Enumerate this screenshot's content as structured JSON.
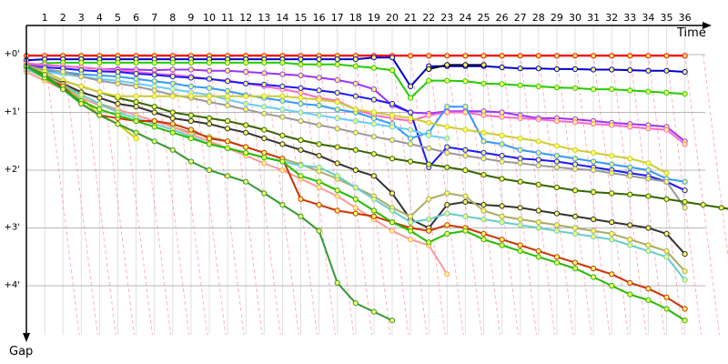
{
  "chart_data": {
    "type": "line",
    "xlabel": "Time",
    "ylabel": "Gap",
    "x_ticks": [
      "1",
      "2",
      "3",
      "4",
      "5",
      "6",
      "7",
      "8",
      "9",
      "10",
      "11",
      "12",
      "13",
      "14",
      "15",
      "16",
      "17",
      "18",
      "19",
      "20",
      "21",
      "22",
      "23",
      "24",
      "25",
      "26",
      "27",
      "28",
      "29",
      "30",
      "31",
      "32",
      "33",
      "34",
      "35",
      "36"
    ],
    "y_ticks": [
      "+0'",
      "+1'",
      "+2'",
      "+3'",
      "+4'"
    ],
    "xlim": [
      0,
      37
    ],
    "ylim": [
      0,
      4.9
    ],
    "grid": true,
    "legend": "none",
    "series": [
      {
        "color": "#ff0000",
        "values": [
          0.02,
          0.02,
          0.02,
          0.02,
          0.02,
          0.02,
          0.02,
          0.02,
          0.02,
          0.02,
          0.02,
          0.02,
          0.02,
          0.02,
          0.02,
          0.02,
          0.02,
          0.02,
          0.02,
          0.02,
          0.02,
          0.02,
          0.02,
          0.02,
          0.02,
          0.02,
          0.02,
          0.02,
          0.02,
          0.02,
          0.02,
          0.02,
          0.02,
          0.02,
          0.02,
          0.02,
          0.02
        ]
      },
      {
        "color": "#0000cc",
        "values": [
          0.1,
          0.08,
          0.08,
          0.08,
          0.08,
          0.08,
          0.08,
          0.08,
          0.08,
          0.08,
          0.08,
          0.08,
          0.08,
          0.08,
          0.08,
          0.08,
          0.08,
          0.08,
          0.08,
          0.05,
          0.05,
          0.55,
          0.2,
          0.2,
          0.2,
          0.2,
          0.22,
          0.24,
          0.24,
          0.25,
          0.25,
          0.26,
          0.26,
          0.27,
          0.28,
          0.28,
          0.3
        ]
      },
      {
        "color": "#000033",
        "values": [
          null,
          null,
          null,
          null,
          null,
          null,
          null,
          null,
          null,
          null,
          null,
          null,
          null,
          null,
          null,
          null,
          null,
          null,
          null,
          null,
          null,
          null,
          0.25,
          0.18,
          0.18,
          0.18
        ]
      },
      {
        "color": "#22cc00",
        "values": [
          0.2,
          0.15,
          0.14,
          0.14,
          0.14,
          0.14,
          0.14,
          0.14,
          0.14,
          0.14,
          0.14,
          0.14,
          0.14,
          0.14,
          0.14,
          0.17,
          0.17,
          0.17,
          0.2,
          0.23,
          0.27,
          0.75,
          0.45,
          0.45,
          0.46,
          0.5,
          0.51,
          0.53,
          0.55,
          0.57,
          0.58,
          0.6,
          0.6,
          0.62,
          0.64,
          0.66,
          0.68
        ]
      },
      {
        "color": "#9933ff",
        "values": [
          0.2,
          0.18,
          0.2,
          0.22,
          0.25,
          0.25,
          0.26,
          0.27,
          0.26,
          0.26,
          0.28,
          0.28,
          0.3,
          0.32,
          0.34,
          0.36,
          0.4,
          0.44,
          0.5,
          0.6,
          0.88,
          1.0,
          1.02,
          0.98,
          0.98,
          0.98,
          1.0,
          1.05,
          1.1,
          1.1,
          1.12,
          1.15,
          1.18,
          1.2,
          1.22,
          1.25,
          1.5
        ]
      },
      {
        "color": "#ff66cc",
        "values": [
          0.15,
          0.18,
          0.2,
          0.22,
          0.25,
          0.27,
          0.3,
          0.33,
          0.35,
          0.38,
          0.42,
          0.45,
          0.5,
          0.55,
          0.6,
          0.66,
          0.75,
          0.8,
          0.95,
          1.05,
          1.1,
          1.15,
          1.05,
          1.0,
          1.0,
          1.05,
          1.08,
          1.1,
          1.12,
          1.15,
          1.17,
          1.2,
          1.22,
          1.25,
          1.28,
          1.3,
          1.55
        ]
      },
      {
        "color": "#1a1aff",
        "values": [
          0.22,
          0.22,
          0.24,
          0.27,
          0.29,
          0.3,
          0.33,
          0.35,
          0.38,
          0.4,
          0.42,
          0.46,
          0.5,
          0.52,
          0.55,
          0.58,
          0.62,
          0.66,
          0.72,
          0.78,
          0.85,
          1.0,
          1.95,
          1.6,
          1.65,
          1.7,
          1.75,
          1.8,
          1.82,
          1.85,
          1.9,
          1.95,
          2.0,
          2.05,
          2.1,
          2.2,
          2.35
        ]
      },
      {
        "color": "#3399ff",
        "values": [
          0.25,
          0.28,
          0.3,
          0.34,
          0.36,
          0.38,
          0.42,
          0.46,
          0.5,
          0.55,
          0.58,
          0.63,
          0.7,
          0.75,
          0.8,
          0.85,
          0.88,
          0.95,
          1.0,
          1.1,
          1.2,
          1.45,
          1.35,
          0.9,
          0.9,
          1.5,
          1.55,
          1.65,
          1.7,
          1.75,
          1.8,
          1.85,
          1.9,
          1.95,
          2.0,
          2.15,
          2.2
        ]
      },
      {
        "color": "#66ccff",
        "values": [
          0.28,
          0.3,
          0.34,
          0.38,
          0.42,
          0.45,
          0.5,
          0.55,
          0.6,
          0.65,
          0.7,
          0.78,
          0.85,
          0.9,
          0.95,
          1.0,
          1.05,
          1.1,
          1.15,
          1.2,
          1.25,
          1.3,
          1.4,
          1.45
        ]
      },
      {
        "color": "#999999",
        "values": [
          0.2,
          0.25,
          0.3,
          0.38,
          0.45,
          0.5,
          0.55,
          0.62,
          0.7,
          0.75,
          0.82,
          0.88,
          0.95,
          1.02,
          1.08,
          1.15,
          1.22,
          1.28,
          1.35,
          1.42,
          1.48,
          1.55,
          1.62,
          1.7,
          1.75,
          1.8,
          1.85,
          1.88,
          1.92,
          1.95,
          1.98,
          2.0,
          2.05,
          2.1,
          2.15,
          2.2,
          2.65
        ]
      },
      {
        "color": "#336600",
        "values": [
          0.2,
          0.3,
          0.45,
          0.55,
          0.65,
          0.75,
          0.82,
          0.9,
          1.0,
          1.05,
          1.1,
          1.15,
          1.22,
          1.3,
          1.4,
          1.48,
          1.55,
          1.6,
          1.65,
          1.72,
          1.8,
          1.85,
          1.9,
          1.95,
          2.0,
          2.08,
          2.15,
          2.2,
          2.25,
          2.3,
          2.35,
          2.38,
          2.4,
          2.42,
          2.45,
          2.5,
          2.55,
          2.6,
          2.65,
          2.7
        ]
      },
      {
        "color": "#cccc00",
        "values": [
          0.3,
          0.45,
          0.55,
          0.75,
          1.05,
          1.2,
          1.45
        ]
      },
      {
        "color": "#cccc33",
        "values": [
          0.2,
          0.3,
          0.45,
          0.55,
          0.65,
          0.72,
          0.72,
          0.72,
          0.72,
          0.72,
          0.72,
          0.72,
          0.72,
          0.72,
          0.72,
          0.75,
          0.78,
          0.82,
          0.95,
          1.0,
          1.05,
          1.1,
          1.18,
          1.25,
          1.3,
          1.35,
          1.4,
          1.45,
          1.5,
          1.58,
          1.65,
          1.7,
          1.75,
          1.8,
          1.88,
          2.05
        ]
      },
      {
        "color": "#333333",
        "values": [
          0.2,
          0.35,
          0.5,
          0.65,
          0.75,
          0.85,
          0.9,
          1.0,
          1.1,
          1.15,
          1.2,
          1.28,
          1.35,
          1.45,
          1.55,
          1.65,
          1.75,
          1.88,
          2.0,
          2.1,
          2.4,
          2.85,
          3.0,
          2.6,
          2.55,
          2.6,
          2.62,
          2.65,
          2.7,
          2.75,
          2.8,
          2.85,
          2.9,
          2.95,
          3.0,
          3.1,
          3.45
        ]
      },
      {
        "color": "#aaaa66",
        "values": [
          0.2,
          0.35,
          0.52,
          0.7,
          0.85,
          0.95,
          1.05,
          1.15,
          1.25,
          1.35,
          1.42,
          1.5,
          1.6,
          1.7,
          1.8,
          1.9,
          2.02,
          2.15,
          2.3,
          2.45,
          2.65,
          2.8,
          2.5,
          2.4,
          2.45,
          2.7,
          2.8,
          2.85,
          2.9,
          2.95,
          3.0,
          3.05,
          3.1,
          3.2,
          3.3,
          3.4,
          3.75
        ]
      },
      {
        "color": "#ff9999",
        "values": [
          0.3,
          0.45,
          0.6,
          0.75,
          0.88,
          0.95,
          1.05,
          1.15,
          1.25,
          1.38,
          1.5,
          1.62,
          1.75,
          1.88,
          2.0,
          2.15,
          2.3,
          2.45,
          2.65,
          2.85,
          3.05,
          3.2,
          3.3,
          3.8
        ]
      },
      {
        "color": "#66cccc",
        "values": [
          0.25,
          0.4,
          0.55,
          0.7,
          0.85,
          1.0,
          1.1,
          1.2,
          1.3,
          1.42,
          1.55,
          1.62,
          1.7,
          1.78,
          1.85,
          1.92,
          1.95,
          2.1,
          2.3,
          2.5,
          2.7,
          2.9,
          2.85,
          2.75,
          2.8,
          2.85,
          2.9,
          2.95,
          3.0,
          3.05,
          3.1,
          3.15,
          3.2,
          3.3,
          3.4,
          3.5,
          3.9
        ]
      },
      {
        "color": "#cc3300",
        "values": [
          0.2,
          0.4,
          0.55,
          0.85,
          1.05,
          1.1,
          1.15,
          1.15,
          1.2,
          1.3,
          1.45,
          1.5,
          1.6,
          1.7,
          1.8,
          2.5,
          2.6,
          2.7,
          2.75,
          2.8,
          2.9,
          3.0,
          3.05,
          2.95,
          3.0,
          3.1,
          3.2,
          3.3,
          3.4,
          3.5,
          3.6,
          3.7,
          3.8,
          3.95,
          4.05,
          4.2,
          4.4
        ]
      },
      {
        "color": "#22bb00",
        "values": [
          0.2,
          0.4,
          0.6,
          0.8,
          0.95,
          1.05,
          1.15,
          1.25,
          1.35,
          1.45,
          1.55,
          1.62,
          1.7,
          1.78,
          1.85,
          2.1,
          2.2,
          2.35,
          2.5,
          2.7,
          2.9,
          3.05,
          3.25,
          3.1,
          3.05,
          3.2,
          3.3,
          3.4,
          3.5,
          3.6,
          3.7,
          3.85,
          4.0,
          4.15,
          4.25,
          4.4,
          4.6
        ]
      },
      {
        "color": "#339933",
        "values": [
          0.2,
          0.35,
          0.6,
          0.85,
          1.05,
          1.2,
          1.35,
          1.5,
          1.65,
          1.85,
          2.0,
          2.1,
          2.2,
          2.4,
          2.6,
          2.8,
          3.05,
          3.95,
          4.3,
          4.45,
          4.6
        ]
      }
    ]
  }
}
